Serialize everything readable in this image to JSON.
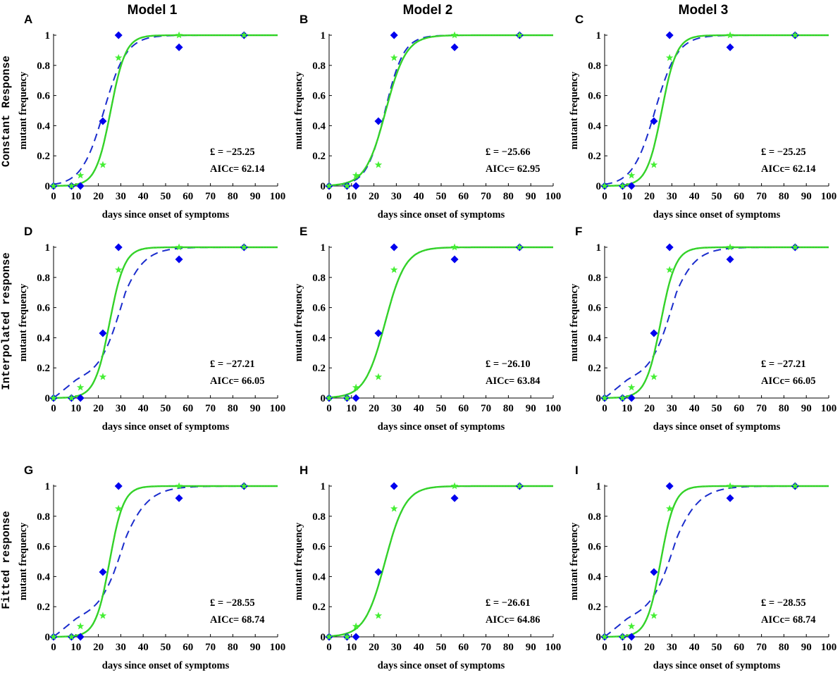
{
  "figure": {
    "column_titles": [
      "Model 1",
      "Model 2",
      "Model 3"
    ],
    "row_titles": [
      "Constant Response",
      "Interpolated response",
      "Fitted response"
    ],
    "colors": {
      "data_blue": "#0000ee",
      "fit_blue": "#1a2ccc",
      "data_green": "#44ee33",
      "fit_green": "#22dd22",
      "fit_green_inner": "#889944"
    }
  },
  "chart_data": [
    {
      "panel": "A",
      "type": "scatter",
      "column": "Model 1",
      "row": "Constant Response",
      "xlabel": "days since onset of symptoms",
      "ylabel": "mutant frequency",
      "xlim": [
        0,
        100
      ],
      "ylim": [
        0,
        1
      ],
      "xticks": [
        "0",
        "10",
        "20",
        "30",
        "40",
        "50",
        "60",
        "70",
        "80",
        "90",
        "100"
      ],
      "yticks": [
        "0",
        "0.2",
        "0.4",
        "0.6",
        "0.8",
        "1"
      ],
      "series": [
        {
          "name": "blue data",
          "marker": "diamond",
          "x": [
            0,
            8,
            12,
            22,
            29,
            56,
            85
          ],
          "y": [
            0,
            0,
            0,
            0.43,
            1.0,
            0.92,
            1.0
          ]
        },
        {
          "name": "green data",
          "marker": "star",
          "x": [
            0,
            8,
            12,
            22,
            29,
            56,
            85
          ],
          "y": [
            0,
            0,
            0.07,
            0.14,
            0.85,
            1.0,
            1.0
          ]
        },
        {
          "name": "blue fit",
          "line": "dashed",
          "midpoint": 22.5,
          "rate": 0.2,
          "linear": false
        },
        {
          "name": "green fit",
          "line": "solid",
          "midpoint": 25.5,
          "rate": 0.3
        }
      ],
      "annotation": {
        "likelihood": "£ =  −25.25",
        "aicc": "AICc= 62.14"
      }
    },
    {
      "panel": "B",
      "type": "scatter",
      "column": "Model 2",
      "row": "Constant Response",
      "xlabel": "days since onset of symptoms",
      "ylabel": "mutant frequency",
      "xlim": [
        0,
        100
      ],
      "ylim": [
        0,
        1
      ],
      "xticks": [
        "0",
        "10",
        "20",
        "30",
        "40",
        "50",
        "60",
        "70",
        "80",
        "90",
        "100"
      ],
      "yticks": [
        "0",
        "0.2",
        "0.4",
        "0.6",
        "0.8",
        "1"
      ],
      "series": [
        {
          "name": "blue data",
          "marker": "diamond",
          "x": [
            0,
            8,
            12,
            22,
            29,
            56,
            85
          ],
          "y": [
            0,
            0,
            0,
            0.43,
            1.0,
            0.92,
            1.0
          ]
        },
        {
          "name": "green data",
          "marker": "star",
          "x": [
            0,
            8,
            12,
            22,
            29,
            56,
            85
          ],
          "y": [
            0,
            0,
            0.07,
            0.14,
            0.85,
            1.0,
            1.0
          ]
        },
        {
          "name": "blue fit",
          "line": "dashed",
          "midpoint": 25.0,
          "rate": 0.24,
          "linear": false
        },
        {
          "name": "green fit",
          "line": "solid",
          "midpoint": 25.3,
          "rate": 0.22
        }
      ],
      "annotation": {
        "likelihood": "£ =  −25.66",
        "aicc": "AICc= 62.95"
      }
    },
    {
      "panel": "C",
      "type": "scatter",
      "column": "Model 3",
      "row": "Constant Response",
      "xlabel": "days since onset of symptoms",
      "ylabel": "mutant frequency",
      "xlim": [
        0,
        100
      ],
      "ylim": [
        0,
        1
      ],
      "xticks": [
        "0",
        "10",
        "20",
        "30",
        "40",
        "50",
        "60",
        "70",
        "80",
        "90",
        "100"
      ],
      "yticks": [
        "0",
        "0.2",
        "0.4",
        "0.6",
        "0.8",
        "1"
      ],
      "series": [
        {
          "name": "blue data",
          "marker": "diamond",
          "x": [
            0,
            8,
            12,
            22,
            29,
            56,
            85
          ],
          "y": [
            0,
            0,
            0,
            0.43,
            1.0,
            0.92,
            1.0
          ]
        },
        {
          "name": "green data",
          "marker": "star",
          "x": [
            0,
            8,
            12,
            22,
            29,
            56,
            85
          ],
          "y": [
            0,
            0,
            0.07,
            0.14,
            0.85,
            1.0,
            1.0
          ]
        },
        {
          "name": "blue fit",
          "line": "dashed",
          "midpoint": 22.5,
          "rate": 0.2,
          "linear": false
        },
        {
          "name": "green fit",
          "line": "solid",
          "midpoint": 25.5,
          "rate": 0.3
        }
      ],
      "annotation": {
        "likelihood": "£ =  −25.25",
        "aicc": "AICc= 62.14"
      }
    },
    {
      "panel": "D",
      "type": "scatter",
      "column": "Model 1",
      "row": "Interpolated response",
      "xlabel": "days since onset of symptoms",
      "ylabel": "mutant frequency",
      "xlim": [
        0,
        100
      ],
      "ylim": [
        0,
        1
      ],
      "xticks": [
        "0",
        "10",
        "20",
        "30",
        "40",
        "50",
        "60",
        "70",
        "80",
        "90",
        "100"
      ],
      "yticks": [
        "0",
        "0.2",
        "0.4",
        "0.6",
        "0.8",
        "1"
      ],
      "series": [
        {
          "name": "blue data",
          "marker": "diamond",
          "x": [
            0,
            8,
            12,
            22,
            29,
            56,
            85
          ],
          "y": [
            0,
            0,
            0,
            0.43,
            1.0,
            0.92,
            1.0
          ]
        },
        {
          "name": "green data",
          "marker": "star",
          "x": [
            0,
            8,
            12,
            22,
            29,
            56,
            85
          ],
          "y": [
            0,
            0,
            0.07,
            0.14,
            0.85,
            1.0,
            1.0
          ]
        },
        {
          "name": "blue fit",
          "line": "dashed",
          "midpoint": 27.0,
          "rate": 0.12,
          "linear": true
        },
        {
          "name": "green fit",
          "line": "solid",
          "midpoint": 25.0,
          "rate": 0.3
        }
      ],
      "annotation": {
        "likelihood": "£ =  −27.21",
        "aicc": "AICc= 66.05"
      }
    },
    {
      "panel": "E",
      "type": "scatter",
      "column": "Model 2",
      "row": "Interpolated response",
      "xlabel": "days since onset of symptoms",
      "ylabel": "mutant frequency",
      "xlim": [
        0,
        100
      ],
      "ylim": [
        0,
        1
      ],
      "xticks": [
        "0",
        "10",
        "20",
        "30",
        "40",
        "50",
        "60",
        "70",
        "80",
        "90",
        "100"
      ],
      "yticks": [
        "0",
        "0.2",
        "0.4",
        "0.6",
        "0.8",
        "1"
      ],
      "series": [
        {
          "name": "blue data",
          "marker": "diamond",
          "x": [
            0,
            8,
            12,
            22,
            29,
            56,
            85
          ],
          "y": [
            0,
            0,
            0,
            0.43,
            1.0,
            0.92,
            1.0
          ]
        },
        {
          "name": "green data",
          "marker": "star",
          "x": [
            0,
            8,
            12,
            22,
            29,
            56,
            85
          ],
          "y": [
            0,
            0,
            0.07,
            0.14,
            0.85,
            1.0,
            1.0
          ]
        },
        {
          "name": "blue fit",
          "line": "dashed",
          "midpoint": 25.0,
          "rate": 0.22,
          "linear": false
        },
        {
          "name": "green fit",
          "line": "solid",
          "midpoint": 25.0,
          "rate": 0.22
        }
      ],
      "annotation": {
        "likelihood": "£ =  −26.10",
        "aicc": "AICc= 63.84"
      }
    },
    {
      "panel": "F",
      "type": "scatter",
      "column": "Model 3",
      "row": "Interpolated response",
      "xlabel": "days since onset of symptoms",
      "ylabel": "mutant frequency",
      "xlim": [
        0,
        100
      ],
      "ylim": [
        0,
        1
      ],
      "xticks": [
        "0",
        "10",
        "20",
        "30",
        "40",
        "50",
        "60",
        "70",
        "80",
        "90",
        "100"
      ],
      "yticks": [
        "0",
        "0.2",
        "0.4",
        "0.6",
        "0.8",
        "1"
      ],
      "series": [
        {
          "name": "blue data",
          "marker": "diamond",
          "x": [
            0,
            8,
            12,
            22,
            29,
            56,
            85
          ],
          "y": [
            0,
            0,
            0,
            0.43,
            1.0,
            0.92,
            1.0
          ]
        },
        {
          "name": "green data",
          "marker": "star",
          "x": [
            0,
            8,
            12,
            22,
            29,
            56,
            85
          ],
          "y": [
            0,
            0,
            0.07,
            0.14,
            0.85,
            1.0,
            1.0
          ]
        },
        {
          "name": "blue fit",
          "line": "dashed",
          "midpoint": 27.0,
          "rate": 0.12,
          "linear": true
        },
        {
          "name": "green fit",
          "line": "solid",
          "midpoint": 25.0,
          "rate": 0.3
        }
      ],
      "annotation": {
        "likelihood": "£ =  −27.21",
        "aicc": "AICc= 66.05"
      }
    },
    {
      "panel": "G",
      "type": "scatter",
      "column": "Model 1",
      "row": "Fitted response",
      "xlabel": "days since onset of symptoms",
      "ylabel": "mutant frequency",
      "xlim": [
        0,
        100
      ],
      "ylim": [
        0,
        1
      ],
      "xticks": [
        "0",
        "10",
        "20",
        "30",
        "40",
        "50",
        "60",
        "70",
        "80",
        "90",
        "100"
      ],
      "yticks": [
        "0",
        "0.2",
        "0.4",
        "0.6",
        "0.8",
        "1"
      ],
      "series": [
        {
          "name": "blue data",
          "marker": "diamond",
          "x": [
            0,
            8,
            12,
            22,
            29,
            56,
            85
          ],
          "y": [
            0,
            0,
            0,
            0.43,
            1.0,
            0.92,
            1.0
          ]
        },
        {
          "name": "green data",
          "marker": "star",
          "x": [
            0,
            8,
            12,
            22,
            29,
            56,
            85
          ],
          "y": [
            0,
            0,
            0.07,
            0.14,
            0.85,
            1.0,
            1.0
          ]
        },
        {
          "name": "blue fit",
          "line": "dashed",
          "midpoint": 28.0,
          "rate": 0.11,
          "linear": true
        },
        {
          "name": "green fit",
          "line": "solid",
          "midpoint": 25.0,
          "rate": 0.32
        }
      ],
      "annotation": {
        "likelihood": "£ =  −28.55",
        "aicc": "AICc= 68.74"
      }
    },
    {
      "panel": "H",
      "type": "scatter",
      "column": "Model 2",
      "row": "Fitted response",
      "xlabel": "days since onset of symptoms",
      "ylabel": "mutant frequency",
      "xlim": [
        0,
        100
      ],
      "ylim": [
        0,
        1
      ],
      "xticks": [
        "0",
        "10",
        "20",
        "30",
        "40",
        "50",
        "60",
        "70",
        "80",
        "90",
        "100"
      ],
      "yticks": [
        "0",
        "0.2",
        "0.4",
        "0.6",
        "0.8",
        "1"
      ],
      "series": [
        {
          "name": "blue data",
          "marker": "diamond",
          "x": [
            0,
            8,
            12,
            22,
            29,
            56,
            85
          ],
          "y": [
            0,
            0,
            0,
            0.43,
            1.0,
            0.92,
            1.0
          ]
        },
        {
          "name": "green data",
          "marker": "star",
          "x": [
            0,
            8,
            12,
            22,
            29,
            56,
            85
          ],
          "y": [
            0,
            0,
            0.07,
            0.14,
            0.85,
            1.0,
            1.0
          ]
        },
        {
          "name": "blue fit",
          "line": "dashed",
          "midpoint": 25.0,
          "rate": 0.22,
          "linear": false
        },
        {
          "name": "green fit",
          "line": "solid",
          "midpoint": 25.0,
          "rate": 0.22
        }
      ],
      "annotation": {
        "likelihood": "£ =  −26.61",
        "aicc": "AICc= 64.86"
      }
    },
    {
      "panel": "I",
      "type": "scatter",
      "column": "Model 3",
      "row": "Fitted response",
      "xlabel": "days since onset of symptoms",
      "ylabel": "mutant frequency",
      "xlim": [
        0,
        100
      ],
      "ylim": [
        0,
        1
      ],
      "xticks": [
        "0",
        "10",
        "20",
        "30",
        "40",
        "50",
        "60",
        "70",
        "80",
        "90",
        "100"
      ],
      "yticks": [
        "0",
        "0.2",
        "0.4",
        "0.6",
        "0.8",
        "1"
      ],
      "series": [
        {
          "name": "blue data",
          "marker": "diamond",
          "x": [
            0,
            8,
            12,
            22,
            29,
            56,
            85
          ],
          "y": [
            0,
            0,
            0,
            0.43,
            1.0,
            0.92,
            1.0
          ]
        },
        {
          "name": "green data",
          "marker": "star",
          "x": [
            0,
            8,
            12,
            22,
            29,
            56,
            85
          ],
          "y": [
            0,
            0,
            0.07,
            0.14,
            0.85,
            1.0,
            1.0
          ]
        },
        {
          "name": "blue fit",
          "line": "dashed",
          "midpoint": 28.0,
          "rate": 0.11,
          "linear": true
        },
        {
          "name": "green fit",
          "line": "solid",
          "midpoint": 25.0,
          "rate": 0.32
        }
      ],
      "annotation": {
        "likelihood": "£ =  −28.55",
        "aicc": "AICc= 68.74"
      }
    }
  ]
}
